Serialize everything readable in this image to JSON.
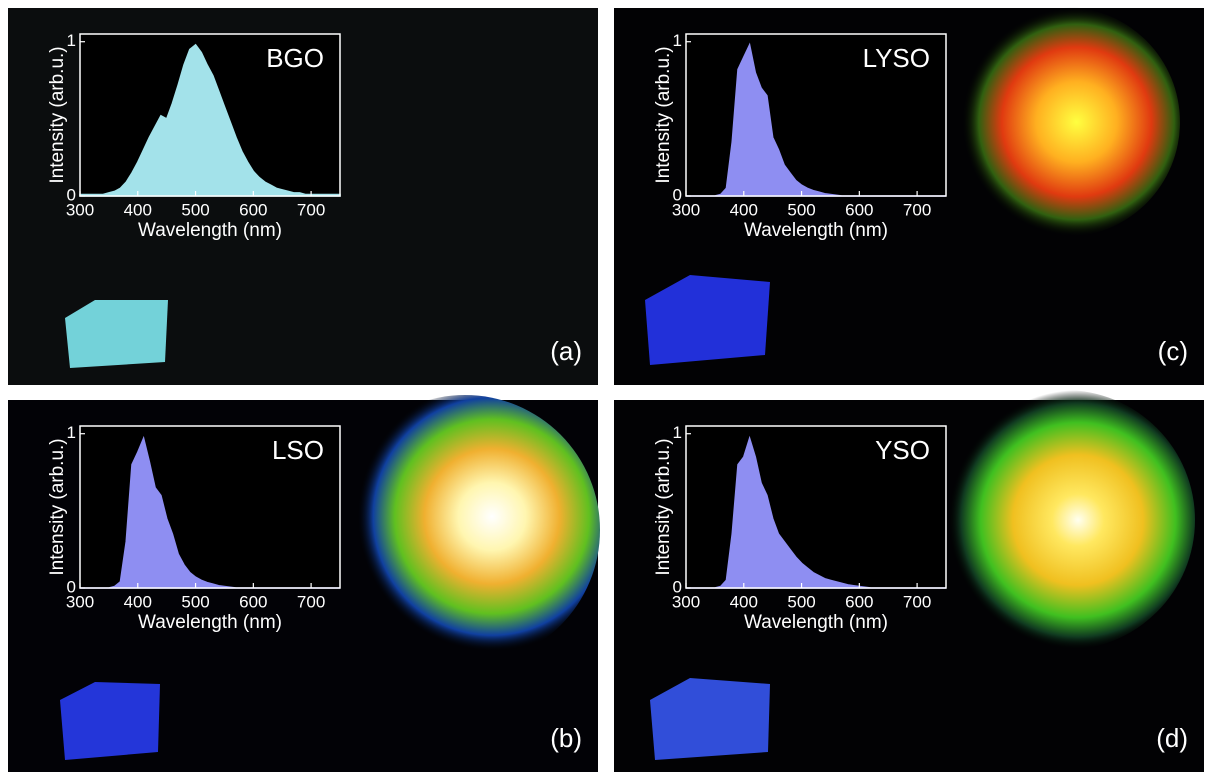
{
  "chart_data": [
    {
      "type": "area",
      "title": "BGO",
      "panel_label": "(a)",
      "x_label": "Wavelength (nm)",
      "y_label": "Intensity (arb.u.)",
      "color": "#a3e2ea",
      "x": [
        300,
        310,
        320,
        330,
        340,
        350,
        360,
        370,
        380,
        390,
        400,
        410,
        420,
        430,
        440,
        450,
        460,
        470,
        480,
        490,
        500,
        510,
        520,
        530,
        540,
        550,
        560,
        570,
        580,
        590,
        600,
        610,
        620,
        630,
        640,
        650,
        660,
        670,
        680,
        690,
        700,
        710,
        720,
        730,
        740,
        750
      ],
      "values": [
        0.01,
        0.01,
        0.01,
        0.01,
        0.01,
        0.02,
        0.03,
        0.05,
        0.09,
        0.15,
        0.22,
        0.3,
        0.38,
        0.45,
        0.52,
        0.5,
        0.6,
        0.72,
        0.85,
        0.95,
        0.98,
        0.93,
        0.85,
        0.78,
        0.68,
        0.58,
        0.48,
        0.38,
        0.29,
        0.22,
        0.16,
        0.12,
        0.09,
        0.07,
        0.05,
        0.04,
        0.03,
        0.02,
        0.02,
        0.01,
        0.01,
        0.01,
        0.01,
        0.01,
        0.01,
        0.01
      ],
      "xlim": [
        300,
        750
      ],
      "ylim": [
        0,
        1.05
      ],
      "xticks": [
        300,
        400,
        500,
        600,
        700
      ],
      "yticks": [
        0,
        1
      ]
    },
    {
      "type": "area",
      "title": "LSO",
      "panel_label": "(b)",
      "x_label": "Wavelength (nm)",
      "y_label": "Intensity (arb.u.)",
      "color": "#8e8ef2",
      "x": [
        300,
        310,
        320,
        330,
        340,
        350,
        360,
        370,
        380,
        390,
        400,
        410,
        420,
        430,
        440,
        450,
        460,
        470,
        480,
        490,
        500,
        510,
        520,
        530,
        540,
        550,
        560,
        570,
        580,
        590,
        600,
        610,
        620,
        630,
        640,
        650,
        660,
        670,
        680,
        690,
        700,
        710,
        720,
        730,
        740,
        750
      ],
      "values": [
        0,
        0,
        0,
        0,
        0,
        0,
        0.01,
        0.04,
        0.3,
        0.8,
        0.88,
        0.97,
        0.82,
        0.65,
        0.6,
        0.45,
        0.35,
        0.22,
        0.15,
        0.1,
        0.07,
        0.05,
        0.035,
        0.025,
        0.015,
        0.01,
        0.005,
        0,
        0,
        0,
        0,
        0,
        0,
        0,
        0,
        0,
        0,
        0,
        0,
        0,
        0,
        0,
        0,
        0,
        0,
        0
      ],
      "xlim": [
        300,
        750
      ],
      "ylim": [
        0,
        1.05
      ],
      "xticks": [
        300,
        400,
        500,
        600,
        700
      ],
      "yticks": [
        0,
        1
      ]
    },
    {
      "type": "area",
      "title": "LYSO",
      "panel_label": "(c)",
      "x_label": "Wavelength (nm)",
      "y_label": "Intensity (arb.u.)",
      "color": "#8e8ef2",
      "x": [
        300,
        310,
        320,
        330,
        340,
        350,
        360,
        370,
        380,
        390,
        400,
        410,
        420,
        430,
        440,
        450,
        460,
        470,
        480,
        490,
        500,
        510,
        520,
        530,
        540,
        550,
        560,
        570,
        580,
        590,
        600,
        610,
        620,
        630,
        640,
        650,
        660,
        670,
        680,
        690,
        700,
        710,
        720,
        730,
        740,
        750
      ],
      "values": [
        0,
        0,
        0,
        0,
        0,
        0,
        0.01,
        0.05,
        0.35,
        0.82,
        0.9,
        0.98,
        0.8,
        0.7,
        0.65,
        0.38,
        0.3,
        0.2,
        0.15,
        0.1,
        0.07,
        0.05,
        0.035,
        0.025,
        0.015,
        0.01,
        0.005,
        0,
        0,
        0,
        0,
        0,
        0,
        0,
        0,
        0,
        0,
        0,
        0,
        0,
        0,
        0,
        0,
        0,
        0,
        0
      ],
      "xlim": [
        300,
        750
      ],
      "ylim": [
        0,
        1.05
      ],
      "xticks": [
        300,
        400,
        500,
        600,
        700
      ],
      "yticks": [
        0,
        1
      ]
    },
    {
      "type": "area",
      "title": "YSO",
      "panel_label": "(d)",
      "x_label": "Wavelength (nm)",
      "y_label": "Intensity (arb.u.)",
      "color": "#8e8ef2",
      "x": [
        300,
        310,
        320,
        330,
        340,
        350,
        360,
        370,
        380,
        390,
        400,
        410,
        420,
        430,
        440,
        450,
        460,
        470,
        480,
        490,
        500,
        510,
        520,
        530,
        540,
        550,
        560,
        570,
        580,
        590,
        600,
        610,
        620,
        630,
        640,
        650,
        660,
        670,
        680,
        690,
        700,
        710,
        720,
        730,
        740,
        750
      ],
      "values": [
        0,
        0,
        0,
        0,
        0,
        0,
        0.01,
        0.05,
        0.35,
        0.8,
        0.85,
        0.97,
        0.85,
        0.68,
        0.6,
        0.45,
        0.35,
        0.3,
        0.25,
        0.2,
        0.16,
        0.13,
        0.1,
        0.08,
        0.06,
        0.05,
        0.04,
        0.03,
        0.02,
        0.015,
        0.01,
        0.005,
        0,
        0,
        0,
        0,
        0,
        0,
        0,
        0,
        0,
        0,
        0,
        0,
        0,
        0
      ],
      "xlim": [
        300,
        750
      ],
      "ylim": [
        0,
        1.05
      ],
      "xticks": [
        300,
        400,
        500,
        600,
        700
      ],
      "yticks": [
        0,
        1
      ]
    }
  ]
}
